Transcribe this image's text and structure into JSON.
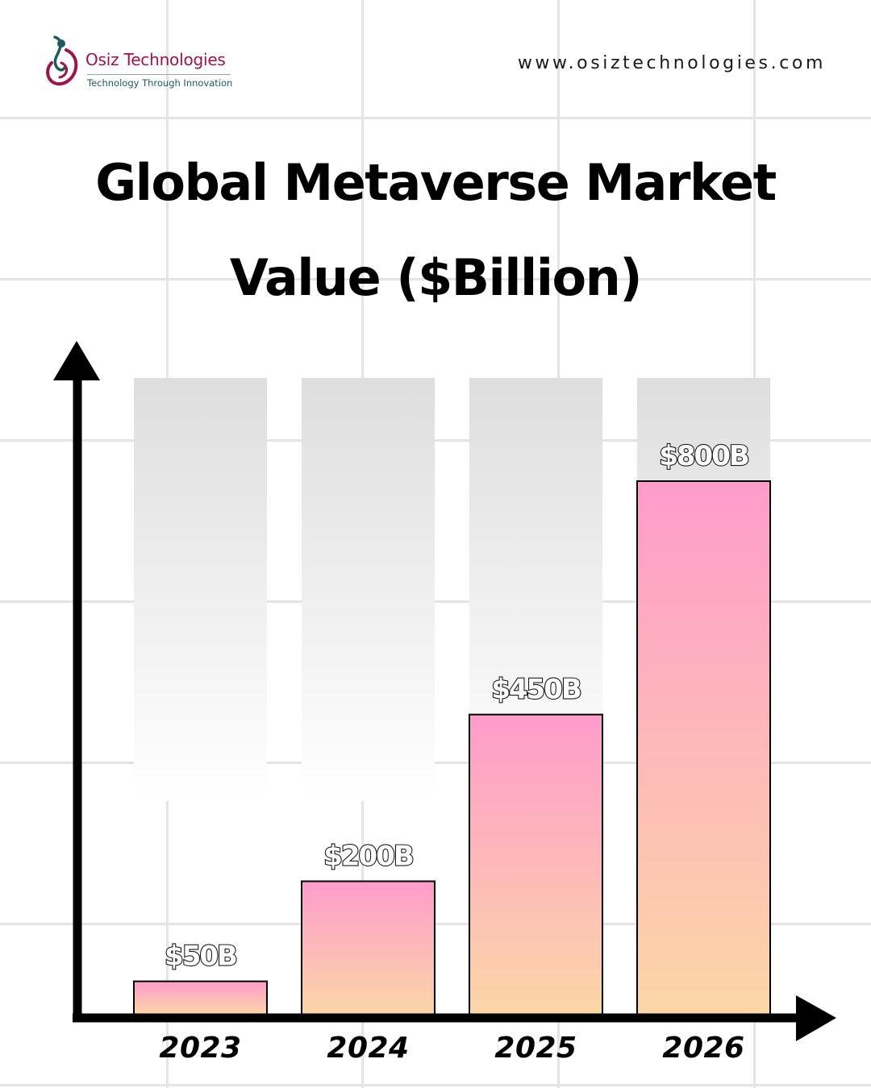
{
  "brand": {
    "name": "Osiz Technologies",
    "tagline": "Technology Through Innovation",
    "website": "www.osiztechnologies.com",
    "colors": {
      "primary": "#a3124c",
      "secondary": "#1d5c5c"
    }
  },
  "title_lines": [
    "Global Metaverse Market",
    "Value ($Billion)"
  ],
  "chart_data": {
    "type": "bar",
    "title": "Global Metaverse Market Value ($Billion)",
    "categories": [
      "2023",
      "2024",
      "2025",
      "2026"
    ],
    "values": [
      50,
      200,
      450,
      800
    ],
    "data_labels": [
      "$50B",
      "$200B",
      "$450B",
      "$800B"
    ],
    "xlabel": "",
    "ylabel": "",
    "ylim": [
      0,
      800
    ],
    "grid": true,
    "colors": {
      "bar_top": "#ff9ccb",
      "bar_bottom": "#fbd6a6",
      "track": "#e0e0e0",
      "axis": "#000000"
    }
  }
}
